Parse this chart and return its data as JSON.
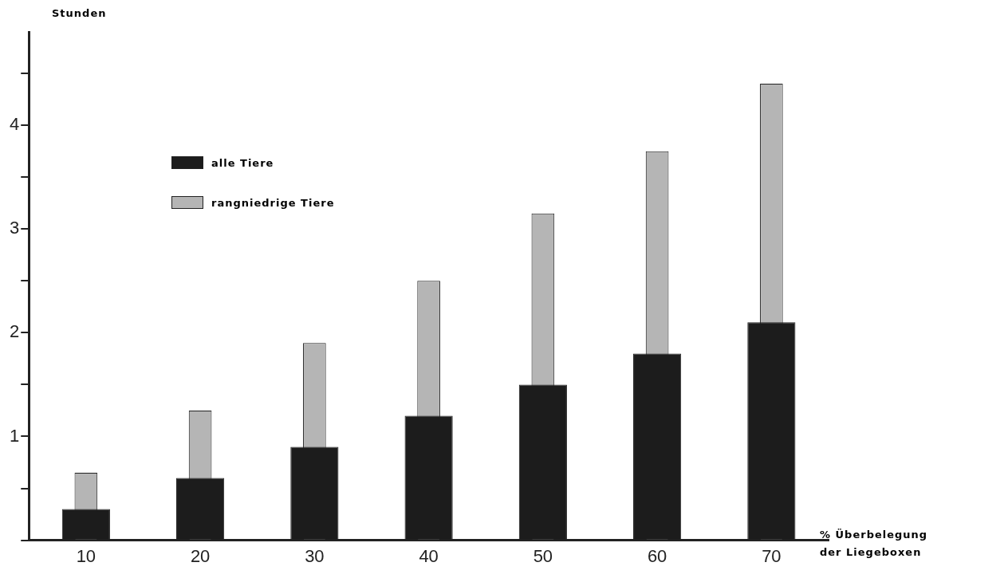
{
  "chart_data": {
    "type": "bar",
    "ylabel": "Stunden",
    "xlabel": "% Überbelegung der Liegeboxen",
    "categories": [
      "10",
      "20",
      "30",
      "40",
      "50",
      "60",
      "70"
    ],
    "series": [
      {
        "name": "alle Tiere",
        "color": "#1c1c1c",
        "values": [
          0.3,
          0.6,
          0.9,
          1.2,
          1.5,
          1.8,
          2.1
        ]
      },
      {
        "name": "rangniedrige Tiere",
        "color": "#b5b5b5",
        "values": [
          0.65,
          1.25,
          1.9,
          2.5,
          3.15,
          3.75,
          4.4
        ]
      }
    ],
    "ylim": [
      0,
      4.9
    ],
    "yticks": [
      {
        "value": 0,
        "label": null
      },
      {
        "value": 0.5,
        "label": null
      },
      1,
      {
        "value": 1.5,
        "label": null
      },
      2,
      {
        "value": 2.5,
        "label": null
      },
      3,
      {
        "value": 3.5,
        "label": null
      },
      4,
      {
        "value": 4.5,
        "label": null
      }
    ],
    "grid": false,
    "legend": "top left"
  }
}
